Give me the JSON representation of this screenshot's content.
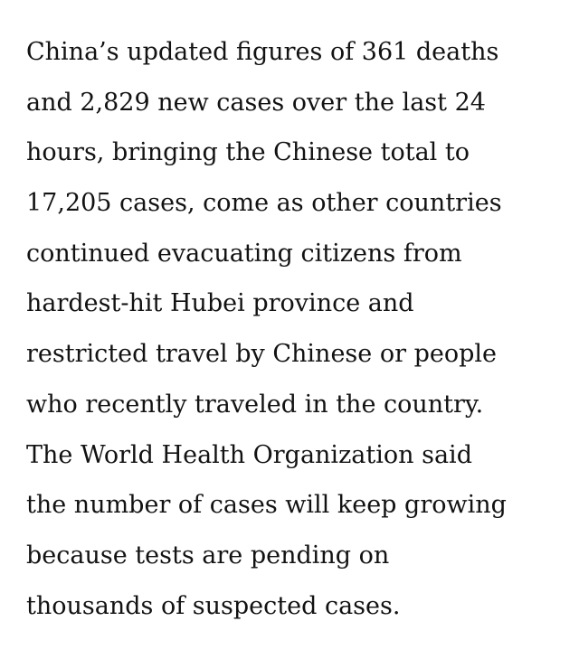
{
  "article": {
    "paragraph_lines": [
      "China’s updated figures of 361 deaths",
      "and 2,829 new cases over the last 24",
      "hours, bringing the Chinese total to",
      "17,205 cases, come as other countries",
      "continued evacuating citizens from",
      "hardest-hit Hubei province and",
      "restricted travel by Chinese or people",
      "who recently traveled in the country.",
      "The World Health Organization said",
      "the number of cases will keep growing",
      "because tests are pending on",
      "thousands of suspected cases."
    ]
  }
}
